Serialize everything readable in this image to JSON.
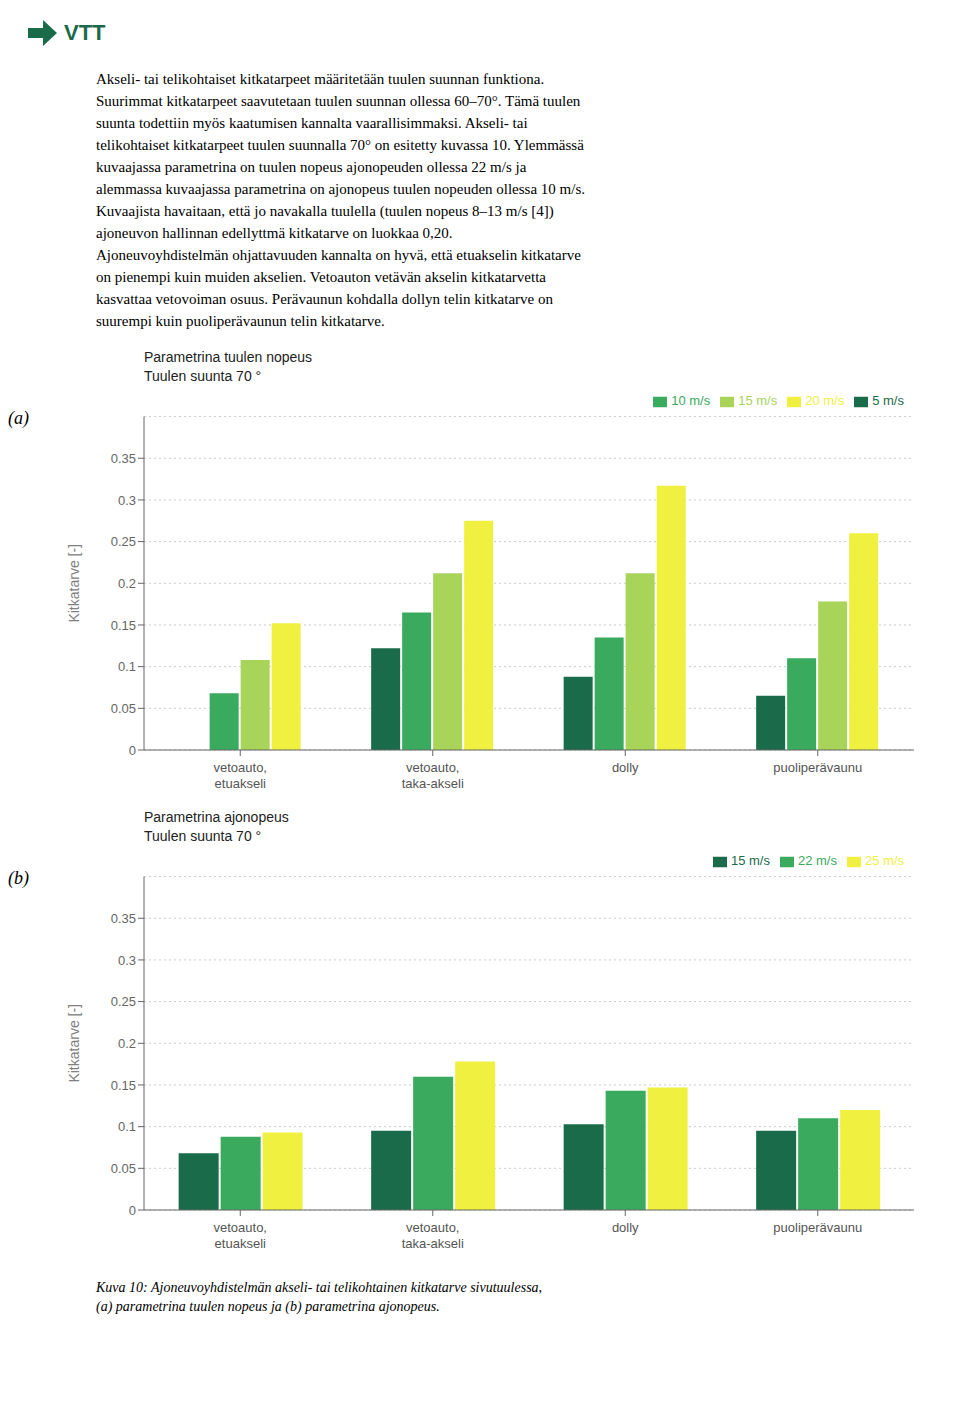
{
  "annotations": [
    "VTT",
    "Akseli- tai telikohtaiset kitkatarpeet määritetään tuulen suunnan funktiona.\nSuurimmat kitkatarpeet saavutetaan tuulen suunnan ollessa 60–70°. Tämä tuulen\nsuunta todettiin myös kaatumisen kannalta vaarallisimmaksi. Akseli- tai\ntelikohtaiset kitkatarpeet tuulen suunnalla 70° on esitetty kuvassa 10. Ylemmässä\nkuvaajassa parametrina on tuulen nopeus ajonopeuden ollessa 22 m/s ja\nalemmassa kuvaajassa parametrina on ajonopeus tuulen nopeuden ollessa 10 m/s.\nKuvaajista havaitaan, että jo navakalla tuulella (tuulen nopeus 8–13 m/s [4])\najoneuvon hallinnan edellyttmä kitkatarve on luokkaa 0,20.\nAjoneuvoyhdistelmän ohjattavuuden kannalta on hyvä, että etuakselin kitkatarve\non pienempi kuin muiden akselien. Vetoauton vetävän akselin kitkatarvetta\nkasvattaa vetovoiman osuus. Perävaunun kohdalla dollyn telin kitkatarve on\nsuurempi kuin puoliperävaunun telin kitkatarve.",
    "Kuva 10: Ajoneuvoyhdistelmän akseli- tai telikohtainen kitkatarve sivutuulessa,\n(a) parametrina tuulen nopeus ja (b) parametrina ajonopeus."
  ],
  "chart_data": [
    {
      "type": "bar",
      "title": "Parametrina tuulen nopeus",
      "subtitle": "Tuulen suunta 70 °",
      "ylabel": "Kitkatarve [-]",
      "categories": [
        "vetoauto,\netuakseli",
        "vetoauto,\ntaka-akseli",
        "dolly",
        "puoliperävaunu"
      ],
      "series": [
        {
          "name": "5 m/s",
          "color": "#1a6b4a",
          "values": [
            0.0,
            0.122,
            0.088,
            0.065
          ]
        },
        {
          "name": "10 m/s",
          "color": "#3aaa5e",
          "values": [
            0.068,
            0.165,
            0.135,
            0.11
          ]
        },
        {
          "name": "15 m/s",
          "color": "#a8d45a",
          "values": [
            0.108,
            0.212,
            0.212,
            0.178
          ]
        },
        {
          "name": "20 m/s",
          "color": "#f0f040",
          "values": [
            0.152,
            0.275,
            0.317,
            0.26
          ]
        }
      ],
      "ylim": [
        0,
        0.4
      ],
      "yticks": [
        0,
        0.05,
        0.1,
        0.15,
        0.2,
        0.25,
        0.3,
        0.35
      ],
      "grid": true,
      "legend": "upper right",
      "annotations": [
        "(a)"
      ]
    },
    {
      "type": "bar",
      "title": "Parametrina ajonopeus",
      "subtitle": "Tuulen suunta 70 °",
      "ylabel": "Kitkatarve [-]",
      "categories": [
        "vetoauto,\netuakseli",
        "vetoauto,\ntaka-akseli",
        "dolly",
        "puoliperävaunu"
      ],
      "series": [
        {
          "name": "15 m/s",
          "color": "#1a6b4a",
          "values": [
            0.068,
            0.095,
            0.103,
            0.095
          ]
        },
        {
          "name": "22 m/s",
          "color": "#3aaa5e",
          "values": [
            0.088,
            0.16,
            0.143,
            0.11
          ]
        },
        {
          "name": "25 m/s",
          "color": "#f0f040",
          "values": [
            0.093,
            0.178,
            0.147,
            0.12
          ]
        }
      ],
      "ylim": [
        0,
        0.4
      ],
      "yticks": [
        0,
        0.05,
        0.1,
        0.15,
        0.2,
        0.25,
        0.3,
        0.35
      ],
      "grid": true,
      "legend": "upper right",
      "annotations": [
        "(b)"
      ]
    }
  ]
}
